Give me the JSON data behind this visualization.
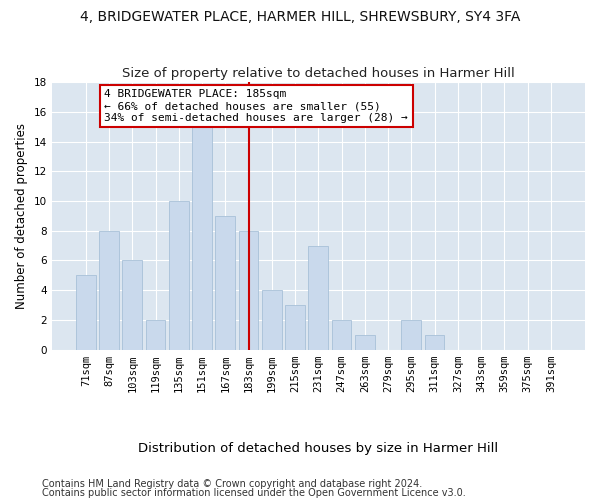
{
  "title_line1": "4, BRIDGEWATER PLACE, HARMER HILL, SHREWSBURY, SY4 3FA",
  "title_line2": "Size of property relative to detached houses in Harmer Hill",
  "xlabel": "Distribution of detached houses by size in Harmer Hill",
  "ylabel": "Number of detached properties",
  "categories": [
    "71sqm",
    "87sqm",
    "103sqm",
    "119sqm",
    "135sqm",
    "151sqm",
    "167sqm",
    "183sqm",
    "199sqm",
    "215sqm",
    "231sqm",
    "247sqm",
    "263sqm",
    "279sqm",
    "295sqm",
    "311sqm",
    "327sqm",
    "343sqm",
    "359sqm",
    "375sqm",
    "391sqm"
  ],
  "values": [
    5,
    8,
    6,
    2,
    10,
    15,
    9,
    8,
    4,
    3,
    7,
    2,
    1,
    0,
    2,
    1,
    0,
    0,
    0,
    0,
    0
  ],
  "bar_color": "#c9d9ec",
  "bar_edge_color": "#a8c0d8",
  "vline_color": "#cc0000",
  "annotation_text": "4 BRIDGEWATER PLACE: 185sqm\n← 66% of detached houses are smaller (55)\n34% of semi-detached houses are larger (28) →",
  "annotation_box_facecolor": "#ffffff",
  "annotation_box_edgecolor": "#cc0000",
  "ylim": [
    0,
    18
  ],
  "yticks": [
    0,
    2,
    4,
    6,
    8,
    10,
    12,
    14,
    16,
    18
  ],
  "fig_bg_color": "#ffffff",
  "plot_bg_color": "#dce6f0",
  "grid_color": "#ffffff",
  "footer_line1": "Contains HM Land Registry data © Crown copyright and database right 2024.",
  "footer_line2": "Contains public sector information licensed under the Open Government Licence v3.0.",
  "title_fontsize": 10,
  "subtitle_fontsize": 9.5,
  "tick_fontsize": 7.5,
  "ylabel_fontsize": 8.5,
  "xlabel_fontsize": 9.5,
  "annotation_fontsize": 8,
  "footer_fontsize": 7
}
